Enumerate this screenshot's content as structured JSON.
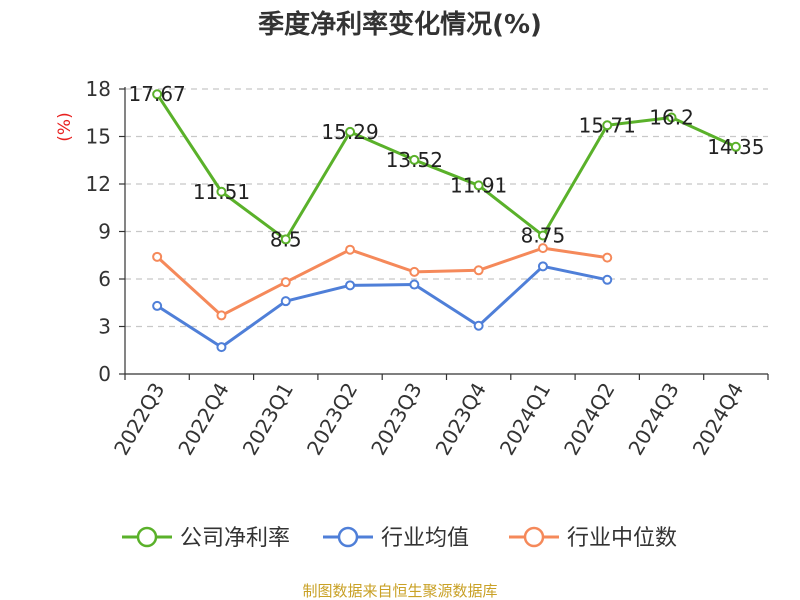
{
  "title": "季度净利率变化情况(%)",
  "source": "制图数据来自恒生聚源数据库",
  "chart_data": {
    "type": "line",
    "title": "季度净利率变化情况(%)",
    "ylabel": "(%)",
    "xlabel": "",
    "categories": [
      "2022Q3",
      "2022Q4",
      "2023Q1",
      "2023Q2",
      "2023Q3",
      "2023Q4",
      "2024Q1",
      "2024Q2",
      "2024Q3",
      "2024Q4"
    ],
    "yticks": [
      0,
      3,
      6,
      9,
      12,
      15,
      18
    ],
    "ylim": [
      0,
      18
    ],
    "grid": true,
    "legend_position": "bottom",
    "series": [
      {
        "name": "公司净利率",
        "color": "#5ab12a",
        "values": [
          17.67,
          11.51,
          8.5,
          15.29,
          13.52,
          11.91,
          8.75,
          15.71,
          16.2,
          14.35
        ],
        "labels": [
          "17.67",
          "11.51",
          "8.5",
          "15.29",
          "13.52",
          "11.91",
          "8.75",
          "15.71",
          "16.2",
          "14.35"
        ]
      },
      {
        "name": "行业均值",
        "color": "#4f7fd8",
        "values": [
          4.3,
          1.7,
          4.6,
          5.6,
          5.65,
          3.05,
          6.8,
          5.95,
          null,
          null
        ]
      },
      {
        "name": "行业中位数",
        "color": "#f5895a",
        "values": [
          7.4,
          3.7,
          5.8,
          7.85,
          6.45,
          6.55,
          7.95,
          7.35,
          null,
          null
        ]
      }
    ]
  }
}
